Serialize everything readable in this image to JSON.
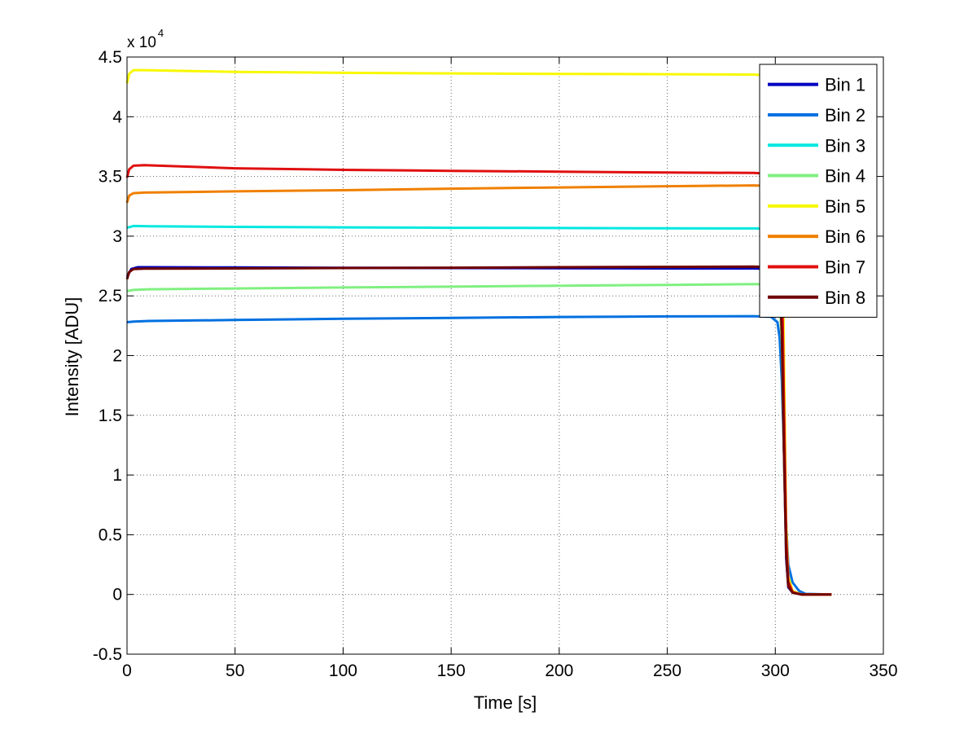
{
  "chart_data": {
    "type": "line",
    "xlabel": "Time [s]",
    "ylabel": "Intensity [ADU]",
    "xlim": [
      0,
      350
    ],
    "ylim": [
      -5000,
      45000
    ],
    "x_ticks": [
      0,
      50,
      100,
      150,
      200,
      250,
      300,
      350
    ],
    "x_tick_labels": [
      "0",
      "50",
      "100",
      "150",
      "200",
      "250",
      "300",
      "350"
    ],
    "y_ticks": [
      -5000,
      0,
      5000,
      10000,
      15000,
      20000,
      25000,
      30000,
      35000,
      40000,
      45000
    ],
    "y_tick_labels": [
      "-0.5",
      "0",
      "0.5",
      "1",
      "1.5",
      "2",
      "2.5",
      "3",
      "3.5",
      "4",
      "4.5"
    ],
    "y_multiplier_text": "x 10",
    "y_multiplier_exp": "4",
    "grid": true,
    "legend_position": "top-right",
    "series": [
      {
        "name": "Bin 1",
        "color": "#0000c0",
        "points": [
          [
            0,
            26600
          ],
          [
            2,
            27250
          ],
          [
            5,
            27400
          ],
          [
            10,
            27400
          ],
          [
            50,
            27380
          ],
          [
            100,
            27350
          ],
          [
            150,
            27330
          ],
          [
            200,
            27320
          ],
          [
            250,
            27300
          ],
          [
            290,
            27300
          ],
          [
            300,
            27250
          ],
          [
            302,
            26500
          ],
          [
            303,
            22000
          ],
          [
            304,
            12000
          ],
          [
            305,
            3000
          ],
          [
            306,
            600
          ],
          [
            308,
            150
          ],
          [
            312,
            0
          ],
          [
            326,
            0
          ]
        ]
      },
      {
        "name": "Bin 2",
        "color": "#0070e0",
        "points": [
          [
            0,
            22800
          ],
          [
            3,
            22850
          ],
          [
            10,
            22900
          ],
          [
            50,
            22980
          ],
          [
            100,
            23080
          ],
          [
            150,
            23150
          ],
          [
            200,
            23230
          ],
          [
            250,
            23280
          ],
          [
            290,
            23300
          ],
          [
            298,
            23250
          ],
          [
            301,
            22800
          ],
          [
            302,
            21500
          ],
          [
            303,
            18000
          ],
          [
            304,
            12000
          ],
          [
            305,
            6000
          ],
          [
            306,
            2500
          ],
          [
            308,
            1000
          ],
          [
            311,
            300
          ],
          [
            314,
            50
          ],
          [
            326,
            0
          ]
        ]
      },
      {
        "name": "Bin 3",
        "color": "#00e8e0",
        "points": [
          [
            0,
            30700
          ],
          [
            3,
            30850
          ],
          [
            10,
            30830
          ],
          [
            50,
            30780
          ],
          [
            100,
            30740
          ],
          [
            150,
            30700
          ],
          [
            200,
            30680
          ],
          [
            250,
            30660
          ],
          [
            290,
            30650
          ],
          [
            300,
            30600
          ],
          [
            302,
            29500
          ],
          [
            303,
            25000
          ],
          [
            304,
            14000
          ],
          [
            305,
            4000
          ],
          [
            306,
            800
          ],
          [
            308,
            200
          ],
          [
            312,
            0
          ],
          [
            326,
            0
          ]
        ]
      },
      {
        "name": "Bin 4",
        "color": "#80f080",
        "points": [
          [
            0,
            25400
          ],
          [
            3,
            25500
          ],
          [
            10,
            25550
          ],
          [
            50,
            25620
          ],
          [
            100,
            25700
          ],
          [
            150,
            25770
          ],
          [
            200,
            25850
          ],
          [
            250,
            25920
          ],
          [
            290,
            25980
          ],
          [
            300,
            25950
          ],
          [
            302,
            25000
          ],
          [
            303,
            21000
          ],
          [
            304,
            12000
          ],
          [
            305,
            3500
          ],
          [
            306,
            700
          ],
          [
            308,
            150
          ],
          [
            312,
            0
          ],
          [
            326,
            0
          ]
        ]
      },
      {
        "name": "Bin 5",
        "color": "#f8f800",
        "points": [
          [
            0,
            42800
          ],
          [
            1,
            43600
          ],
          [
            3,
            43900
          ],
          [
            8,
            43900
          ],
          [
            50,
            43760
          ],
          [
            100,
            43680
          ],
          [
            150,
            43630
          ],
          [
            200,
            43590
          ],
          [
            250,
            43560
          ],
          [
            290,
            43530
          ],
          [
            300,
            43450
          ],
          [
            302,
            41500
          ],
          [
            303,
            35000
          ],
          [
            304,
            20000
          ],
          [
            305,
            6000
          ],
          [
            306,
            1500
          ],
          [
            308,
            300
          ],
          [
            312,
            0
          ],
          [
            326,
            0
          ]
        ]
      },
      {
        "name": "Bin 6",
        "color": "#f08000",
        "points": [
          [
            0,
            32800
          ],
          [
            1,
            33400
          ],
          [
            3,
            33600
          ],
          [
            8,
            33650
          ],
          [
            50,
            33750
          ],
          [
            100,
            33850
          ],
          [
            150,
            33980
          ],
          [
            200,
            34080
          ],
          [
            250,
            34180
          ],
          [
            290,
            34250
          ],
          [
            300,
            34200
          ],
          [
            302,
            32500
          ],
          [
            303,
            27000
          ],
          [
            304,
            15000
          ],
          [
            305,
            4500
          ],
          [
            306,
            1000
          ],
          [
            308,
            200
          ],
          [
            312,
            0
          ],
          [
            326,
            0
          ]
        ]
      },
      {
        "name": "Bin 7",
        "color": "#e01010",
        "points": [
          [
            0,
            34900
          ],
          [
            1,
            35600
          ],
          [
            3,
            35900
          ],
          [
            8,
            35950
          ],
          [
            50,
            35680
          ],
          [
            100,
            35550
          ],
          [
            150,
            35470
          ],
          [
            200,
            35400
          ],
          [
            250,
            35330
          ],
          [
            290,
            35300
          ],
          [
            300,
            35200
          ],
          [
            302,
            33500
          ],
          [
            303,
            28000
          ],
          [
            304,
            16000
          ],
          [
            305,
            5000
          ],
          [
            306,
            1100
          ],
          [
            308,
            200
          ],
          [
            312,
            0
          ],
          [
            326,
            0
          ]
        ]
      },
      {
        "name": "Bin 8",
        "color": "#700000",
        "points": [
          [
            0,
            26400
          ],
          [
            1,
            27000
          ],
          [
            3,
            27250
          ],
          [
            8,
            27280
          ],
          [
            50,
            27300
          ],
          [
            100,
            27330
          ],
          [
            150,
            27360
          ],
          [
            200,
            27400
          ],
          [
            250,
            27430
          ],
          [
            290,
            27450
          ],
          [
            300,
            27400
          ],
          [
            302,
            26500
          ],
          [
            303,
            22000
          ],
          [
            304,
            12000
          ],
          [
            305,
            3500
          ],
          [
            306,
            700
          ],
          [
            308,
            150
          ],
          [
            312,
            0
          ],
          [
            326,
            0
          ]
        ]
      }
    ]
  }
}
